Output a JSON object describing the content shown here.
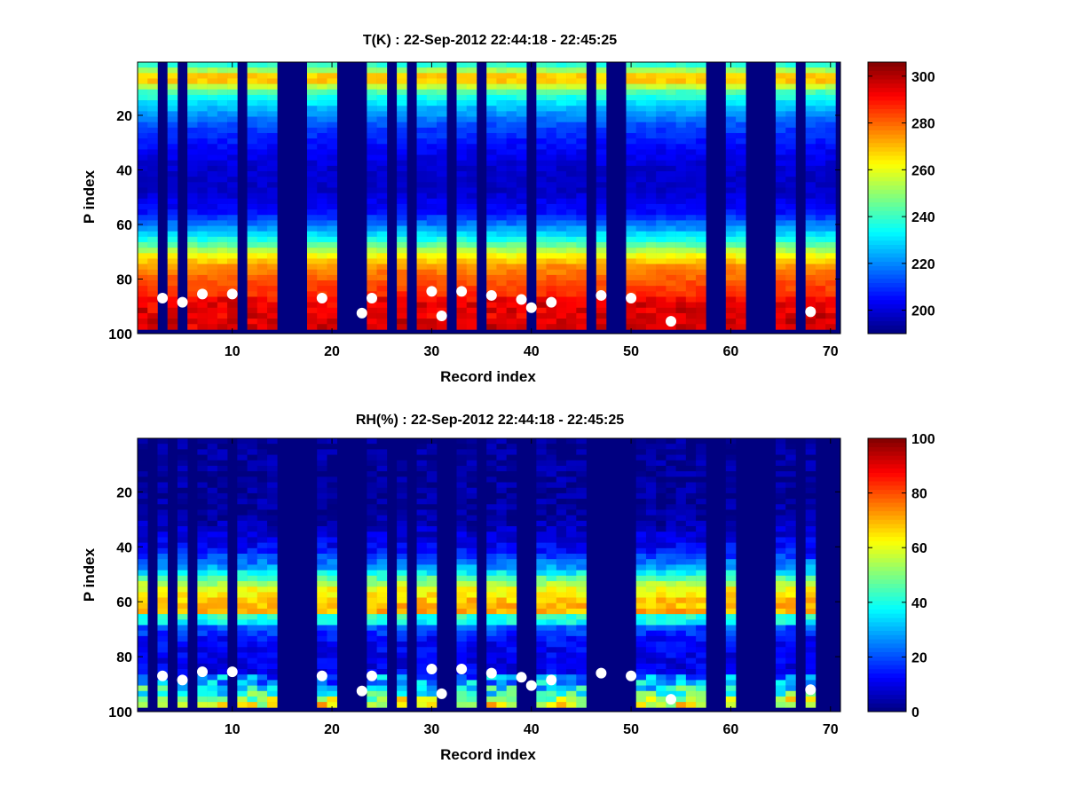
{
  "figure": {
    "background": "#ffffff",
    "colormap": "jet"
  },
  "chart_data": [
    {
      "type": "heatmap",
      "title": "T(K) : 22-Sep-2012 22:44:18 - 22:45:25",
      "xlabel": "Record index",
      "ylabel": "P index",
      "xlim": [
        0.5,
        71
      ],
      "ylim": [
        100,
        0.5
      ],
      "y_reversed": true,
      "xticks": [
        10,
        20,
        30,
        40,
        50,
        60,
        70
      ],
      "yticks": [
        20,
        40,
        60,
        80,
        100
      ],
      "colorbar": {
        "min": 190,
        "max": 306,
        "ticks": [
          200,
          220,
          240,
          260,
          280,
          300
        ]
      },
      "levels": [
        [
          0,
          225
        ],
        [
          3,
          245
        ],
        [
          7,
          275
        ],
        [
          9,
          262
        ],
        [
          12,
          242
        ],
        [
          18,
          225
        ],
        [
          25,
          212
        ],
        [
          33,
          204
        ],
        [
          40,
          199
        ],
        [
          48,
          198
        ],
        [
          56,
          206
        ],
        [
          62,
          222
        ],
        [
          67,
          240
        ],
        [
          72,
          262
        ],
        [
          76,
          275
        ],
        [
          82,
          283
        ],
        [
          90,
          290
        ],
        [
          97,
          292
        ]
      ],
      "surface_boost": 8,
      "markers": [
        [
          3,
          87
        ],
        [
          5,
          88.5
        ],
        [
          7,
          85.5
        ],
        [
          10,
          85.5
        ],
        [
          19,
          87
        ],
        [
          23,
          92.5
        ],
        [
          24,
          87
        ],
        [
          30,
          84.5
        ],
        [
          31,
          93.5
        ],
        [
          33,
          84.5
        ],
        [
          36,
          86
        ],
        [
          39,
          87.5
        ],
        [
          40,
          90.5
        ],
        [
          42,
          88.5
        ],
        [
          47,
          86
        ],
        [
          50,
          87
        ],
        [
          54,
          95.5
        ],
        [
          68,
          92
        ]
      ]
    },
    {
      "type": "heatmap",
      "title": "RH(%) : 22-Sep-2012 22:44:18 - 22:45:25",
      "xlabel": "Record index",
      "ylabel": "P index",
      "xlim": [
        0.5,
        71
      ],
      "ylim": [
        100,
        0.5
      ],
      "y_reversed": true,
      "xticks": [
        10,
        20,
        30,
        40,
        50,
        60,
        70
      ],
      "yticks": [
        20,
        40,
        60,
        80,
        100
      ],
      "colorbar": {
        "min": 0,
        "max": 100,
        "ticks": [
          0,
          20,
          40,
          60,
          80,
          100
        ]
      },
      "levels": [
        [
          0,
          2
        ],
        [
          30,
          3
        ],
        [
          36,
          8
        ],
        [
          42,
          14
        ],
        [
          48,
          28
        ],
        [
          53,
          50
        ],
        [
          56,
          62
        ],
        [
          60,
          68
        ],
        [
          64,
          70
        ],
        [
          66,
          42
        ],
        [
          68,
          38
        ],
        [
          70,
          20
        ],
        [
          75,
          12
        ],
        [
          85,
          10
        ],
        [
          90,
          15
        ],
        [
          95,
          35
        ],
        [
          97,
          48
        ]
      ],
      "surface_boost": 25,
      "markers": [
        [
          3,
          87
        ],
        [
          5,
          88.5
        ],
        [
          7,
          85.5
        ],
        [
          10,
          85.5
        ],
        [
          19,
          87
        ],
        [
          23,
          92.5
        ],
        [
          24,
          87
        ],
        [
          30,
          84.5
        ],
        [
          31,
          93.5
        ],
        [
          33,
          84.5
        ],
        [
          36,
          86
        ],
        [
          39,
          87.5
        ],
        [
          40,
          90.5
        ],
        [
          42,
          88.5
        ],
        [
          47,
          86
        ],
        [
          50,
          87
        ],
        [
          54,
          95.5
        ],
        [
          68,
          92
        ]
      ]
    }
  ],
  "missing_records": [
    2,
    4,
    6,
    10,
    15,
    16,
    17,
    18,
    21,
    22,
    23,
    26,
    28,
    31,
    32,
    35,
    39,
    40,
    46,
    47,
    48,
    49,
    50,
    58,
    59,
    61,
    62,
    63,
    64,
    67,
    69,
    70,
    71
  ],
  "missing_profiles_top": [
    3,
    5,
    11,
    15,
    16,
    17,
    21,
    22,
    23,
    26,
    28,
    32,
    35,
    40,
    46,
    48,
    49,
    58,
    59,
    62,
    63,
    64,
    67
  ],
  "data_bottom_index": 98
}
